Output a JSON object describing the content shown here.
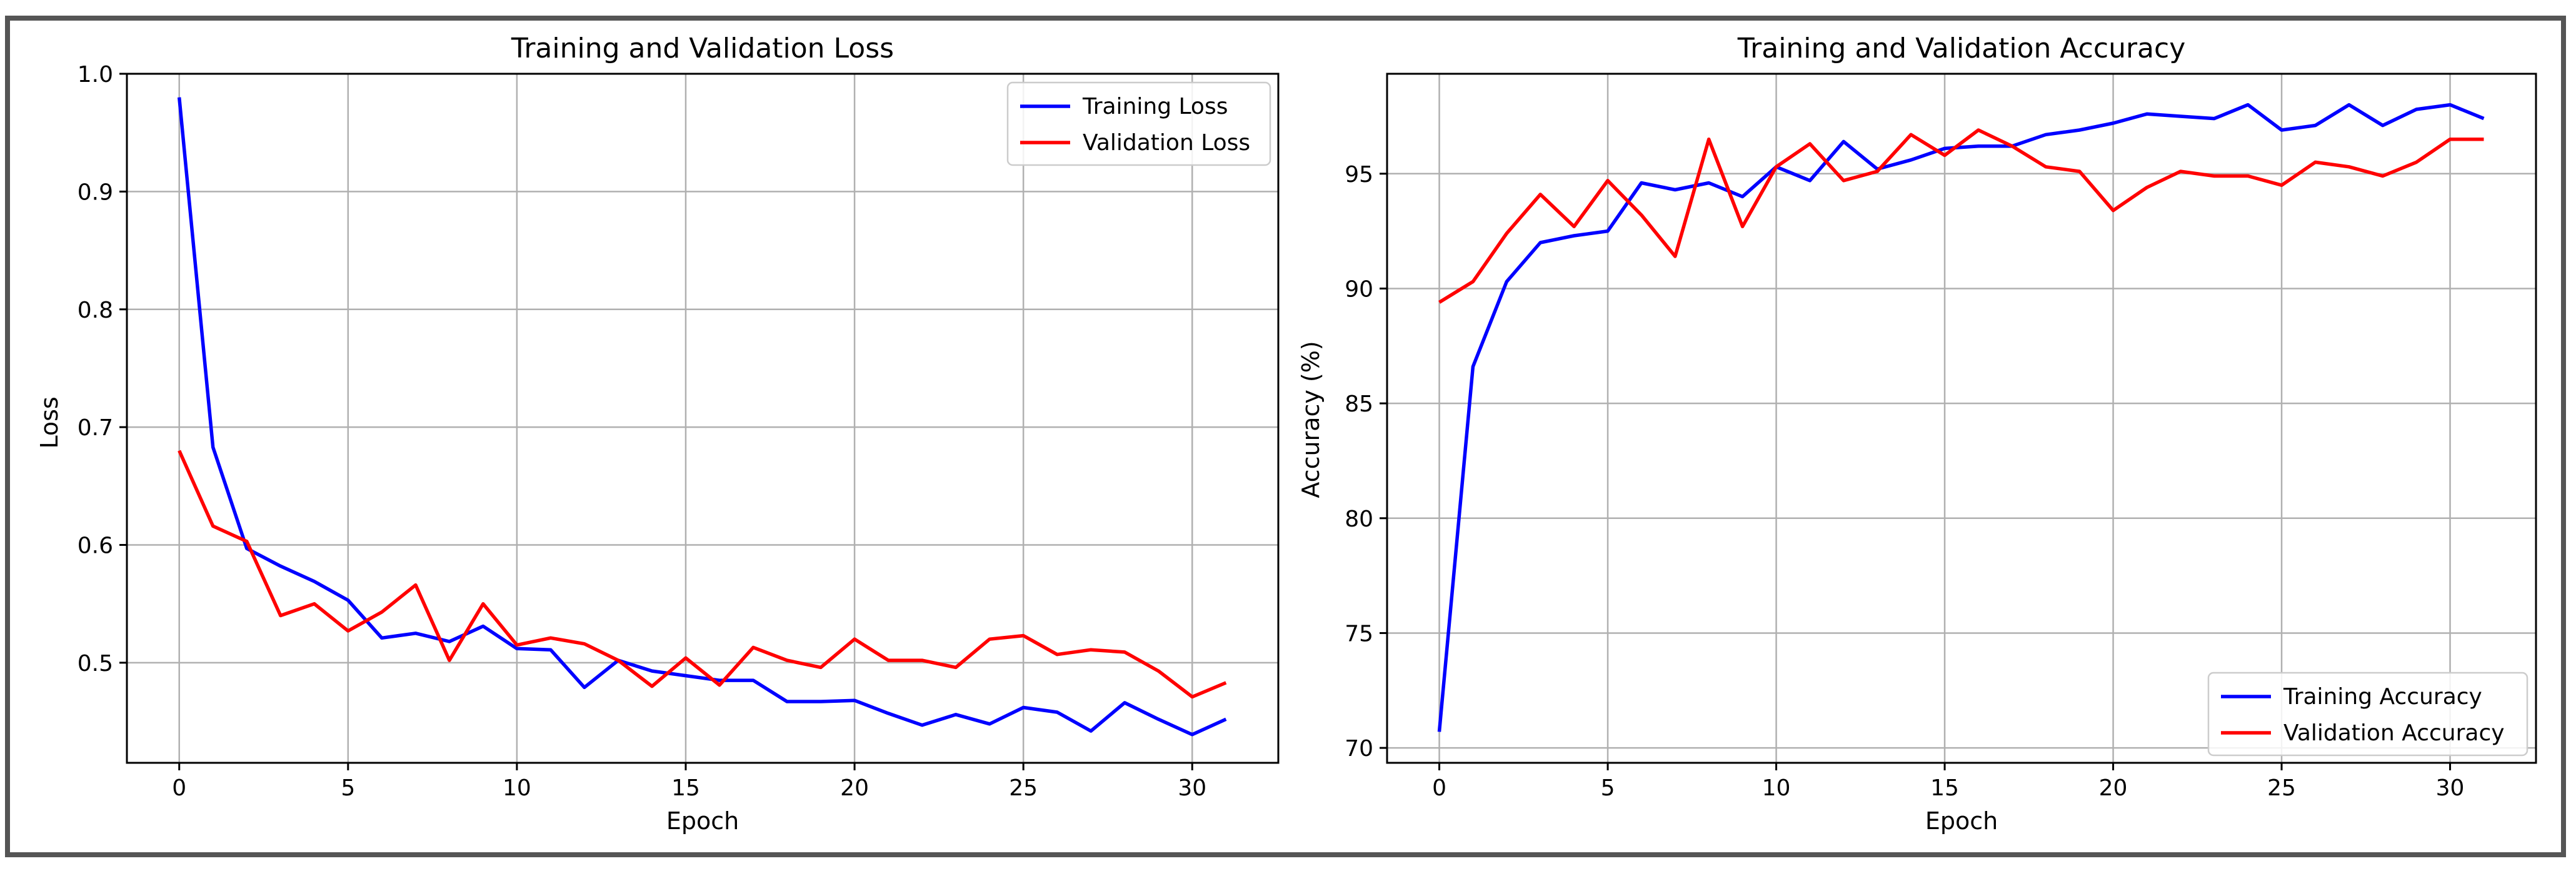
{
  "chart_data": [
    {
      "type": "line",
      "title": "Training and Validation Loss",
      "xlabel": "Epoch",
      "ylabel": "Loss",
      "xlim": [
        -1.55,
        32.55
      ],
      "ylim": [
        0.415,
        1.0
      ],
      "xticks": [
        0,
        5,
        10,
        15,
        20,
        25,
        30
      ],
      "yticks": [
        0.5,
        0.6,
        0.7,
        0.8,
        0.9,
        1.0
      ],
      "ytick_labels": [
        "0.5",
        "0.6",
        "0.7",
        "0.8",
        "0.9",
        "1.0"
      ],
      "grid": true,
      "legend_position": "top-right",
      "x": [
        0,
        1,
        2,
        3,
        4,
        5,
        6,
        7,
        8,
        9,
        10,
        11,
        12,
        13,
        14,
        15,
        16,
        17,
        18,
        19,
        20,
        21,
        22,
        23,
        24,
        25,
        26,
        27,
        28,
        29,
        30,
        31
      ],
      "series": [
        {
          "name": "Training Loss",
          "color": "#0000ff",
          "values": [
            0.98,
            0.683,
            0.597,
            0.582,
            0.569,
            0.553,
            0.521,
            0.525,
            0.518,
            0.531,
            0.512,
            0.511,
            0.479,
            0.502,
            0.493,
            0.489,
            0.485,
            0.485,
            0.467,
            0.467,
            0.468,
            0.457,
            0.447,
            0.456,
            0.448,
            0.462,
            0.458,
            0.442,
            0.466,
            0.452,
            0.439,
            0.452
          ]
        },
        {
          "name": "Validation Loss",
          "color": "#ff0000",
          "values": [
            0.68,
            0.616,
            0.603,
            0.54,
            0.55,
            0.527,
            0.543,
            0.566,
            0.502,
            0.55,
            0.515,
            0.521,
            0.516,
            0.502,
            0.48,
            0.504,
            0.481,
            0.513,
            0.502,
            0.496,
            0.52,
            0.502,
            0.502,
            0.496,
            0.52,
            0.523,
            0.507,
            0.511,
            0.509,
            0.493,
            0.471,
            0.483
          ]
        }
      ]
    },
    {
      "type": "line",
      "title": "Training and Validation Accuracy",
      "xlabel": "Epoch",
      "ylabel": "Accuracy (%)",
      "xlim": [
        -1.55,
        32.55
      ],
      "ylim": [
        69.35,
        99.35
      ],
      "xticks": [
        0,
        5,
        10,
        15,
        20,
        25,
        30
      ],
      "yticks": [
        70,
        75,
        80,
        85,
        90,
        95
      ],
      "ytick_labels": [
        "70",
        "75",
        "80",
        "85",
        "90",
        "95"
      ],
      "grid": true,
      "legend_position": "bottom-right",
      "x": [
        0,
        1,
        2,
        3,
        4,
        5,
        6,
        7,
        8,
        9,
        10,
        11,
        12,
        13,
        14,
        15,
        16,
        17,
        18,
        19,
        20,
        21,
        22,
        23,
        24,
        25,
        26,
        27,
        28,
        29,
        30,
        31
      ],
      "series": [
        {
          "name": "Training Accuracy",
          "color": "#0000ff",
          "values": [
            70.7,
            86.6,
            90.3,
            92.0,
            92.3,
            92.5,
            94.6,
            94.3,
            94.6,
            94.0,
            95.3,
            94.7,
            96.4,
            95.2,
            95.6,
            96.1,
            96.2,
            96.2,
            96.7,
            96.9,
            97.2,
            97.6,
            97.5,
            97.4,
            98.0,
            96.9,
            97.1,
            98.0,
            97.1,
            97.8,
            98.0,
            97.4
          ]
        },
        {
          "name": "Validation Accuracy",
          "color": "#ff0000",
          "values": [
            89.4,
            90.3,
            92.4,
            94.1,
            92.7,
            94.7,
            93.2,
            91.4,
            96.5,
            92.7,
            95.3,
            96.3,
            94.7,
            95.1,
            96.7,
            95.8,
            96.9,
            96.2,
            95.3,
            95.1,
            93.4,
            94.4,
            95.1,
            94.9,
            94.9,
            94.5,
            95.5,
            95.3,
            94.9,
            95.5,
            96.5,
            96.5
          ]
        }
      ]
    }
  ]
}
